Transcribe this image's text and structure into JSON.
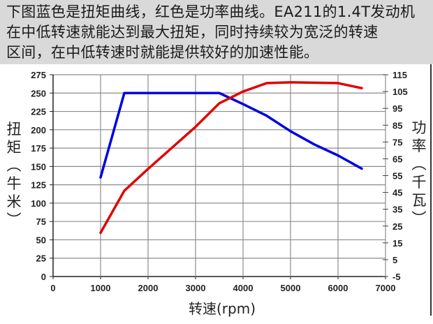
{
  "caption": {
    "lines": [
      "下图蓝色是扭矩曲线，红色是功率曲线。EA211的1.4T发动机",
      "在中低转速就能达到最大扭矩，同时持续较为宽泛的转速",
      "区间，在中低转速时就能提供较好的加速性能。"
    ]
  },
  "axes": {
    "left_label": [
      "扭",
      "矩",
      "︵",
      "牛",
      "米",
      "︶"
    ],
    "right_label": [
      "功",
      "率",
      "︵",
      "千",
      "瓦",
      "︶"
    ],
    "x_label": "转速(rpm)",
    "x_ticks": [
      "0",
      "1000",
      "2000",
      "3000",
      "4000",
      "5000",
      "6000",
      "7000"
    ],
    "left_ticks": [
      "0",
      "25",
      "50",
      "75",
      "100",
      "125",
      "150",
      "175",
      "200",
      "225",
      "250",
      "275"
    ],
    "right_ticks": [
      "-5",
      "5",
      "15",
      "25",
      "35",
      "45",
      "55",
      "65",
      "75",
      "85",
      "95",
      "105",
      "115"
    ]
  },
  "colors": {
    "torque": "#0000e0",
    "power": "#e00000",
    "grid": "#8c8c8c",
    "caption_bg": "#d9d9d9"
  },
  "chart_data": {
    "type": "line",
    "title": "",
    "xlabel": "转速(rpm)",
    "ylabel": "扭矩（牛米）",
    "y2label": "功率（千瓦）",
    "xlim": [
      0,
      7000
    ],
    "ylim": [
      0,
      275
    ],
    "y2lim": [
      -5,
      115
    ],
    "grid": true,
    "legend": "none",
    "series": [
      {
        "name": "扭矩",
        "axis": "left",
        "color": "#0000e0",
        "x": [
          1000,
          1500,
          3500,
          4000,
          4500,
          5000,
          5500,
          6000,
          6500
        ],
        "values": [
          135,
          250,
          250,
          235,
          219,
          198,
          180,
          165,
          147
        ]
      },
      {
        "name": "功率",
        "axis": "right",
        "color": "#e00000",
        "x": [
          1000,
          1500,
          2000,
          3000,
          3500,
          4000,
          4500,
          5000,
          6000,
          6500
        ],
        "values": [
          21,
          46,
          59,
          84,
          98,
          105,
          110,
          110.5,
          110,
          107
        ]
      }
    ]
  }
}
